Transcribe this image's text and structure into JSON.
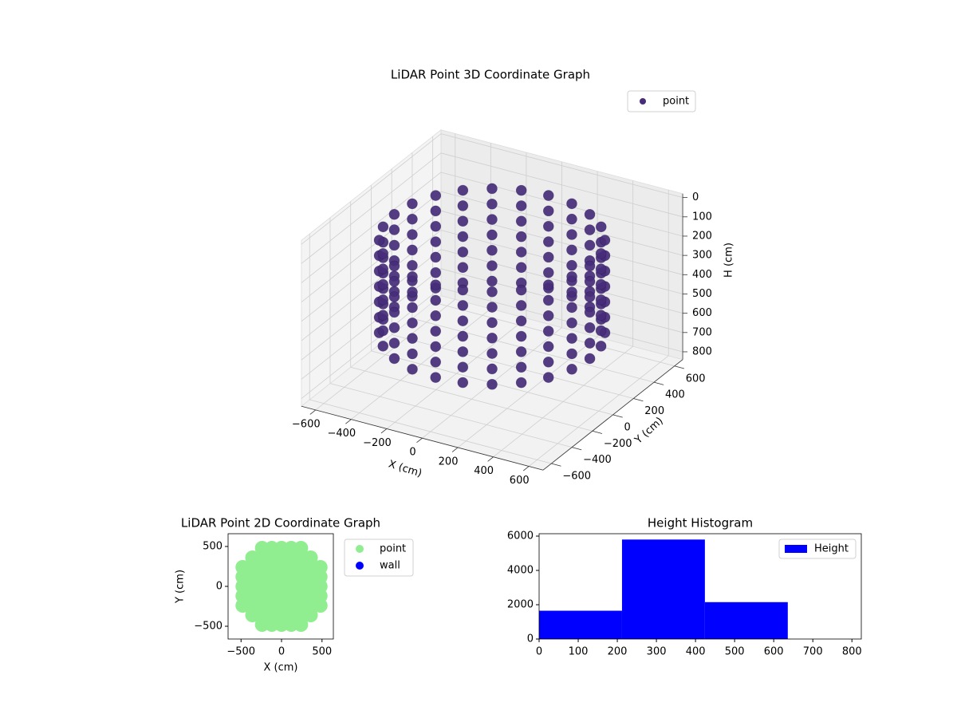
{
  "chart_data": [
    {
      "type": "scatter3d",
      "title": "LiDAR Point 3D Coordinate Graph",
      "xlabel": "X (cm)",
      "ylabel": "Y (cm)",
      "zlabel": "H (cm)",
      "xlim": [
        -680,
        680
      ],
      "ylim": [
        -680,
        680
      ],
      "zlim": [
        -20,
        840
      ],
      "zinverted": true,
      "xticks": [
        {
          "value": -600,
          "label": "−600"
        },
        {
          "value": -400,
          "label": "−400"
        },
        {
          "value": -200,
          "label": "−200"
        },
        0,
        200,
        400,
        600
      ],
      "yticks": [
        {
          "value": -600,
          "label": "−600"
        },
        {
          "value": -400,
          "label": "−400"
        },
        {
          "value": -200,
          "label": "−200"
        },
        0,
        200,
        400,
        600
      ],
      "zticks": [
        0,
        100,
        200,
        300,
        400,
        500,
        600,
        700,
        800
      ],
      "grid": true,
      "legend": "upper right",
      "series": [
        {
          "name": "point",
          "color": "#472c7a",
          "x": [
            550,
            531,
            476,
            389,
            275,
            142,
            0,
            -142,
            -275,
            -389,
            -476,
            -531,
            -550,
            -531,
            -476,
            -389,
            -275,
            -142,
            0,
            142,
            275,
            389,
            476,
            531,
            550,
            531,
            476,
            389,
            275,
            142,
            0,
            -142,
            -275,
            -389,
            -476,
            -531,
            -550,
            -531,
            -476,
            -389,
            -275,
            -142,
            0,
            142,
            275,
            389,
            476,
            531,
            550,
            531,
            476,
            389,
            275,
            142,
            0,
            -142,
            -275,
            -389,
            -476,
            -531,
            -550,
            -531,
            -476,
            -389,
            -275,
            -142,
            0,
            142,
            275,
            389,
            476,
            531,
            550,
            531,
            476,
            389,
            275,
            142,
            0,
            -142,
            -275,
            -389,
            -476,
            -531,
            -550,
            -531,
            -476,
            -389,
            -275,
            -142,
            0,
            142,
            275,
            389,
            476,
            531,
            550,
            531,
            476,
            389,
            275,
            142,
            0,
            -142,
            -275,
            -389,
            -476,
            -531,
            -550,
            -531,
            -476,
            -389,
            -275,
            -142,
            0,
            142,
            275,
            389,
            476,
            531,
            550,
            531,
            476,
            389,
            275,
            142,
            0,
            -142,
            -275,
            -389,
            -476,
            -531,
            -550,
            -531,
            -476,
            -389,
            -275,
            -142,
            0,
            142,
            275,
            389,
            476,
            531,
            550,
            531,
            476,
            389,
            275,
            142,
            0,
            -142,
            -275,
            -389,
            -476,
            -531,
            -550,
            -531,
            -476,
            -389,
            -275,
            -142,
            0,
            142,
            275,
            389,
            476,
            531
          ],
          "y": [
            0,
            142,
            275,
            389,
            476,
            531,
            550,
            531,
            476,
            389,
            275,
            142,
            0,
            -142,
            -275,
            -389,
            -476,
            -531,
            -550,
            -531,
            -476,
            -389,
            -275,
            -142,
            0,
            142,
            275,
            389,
            476,
            531,
            550,
            531,
            476,
            389,
            275,
            142,
            0,
            -142,
            -275,
            -389,
            -476,
            -531,
            -550,
            -531,
            -476,
            -389,
            -275,
            -142,
            0,
            142,
            275,
            389,
            476,
            531,
            550,
            531,
            476,
            389,
            275,
            142,
            0,
            -142,
            -275,
            -389,
            -476,
            -531,
            -550,
            -531,
            -476,
            -389,
            -275,
            -142,
            0,
            142,
            275,
            389,
            476,
            531,
            550,
            531,
            476,
            389,
            275,
            142,
            0,
            -142,
            -275,
            -389,
            -476,
            -531,
            -550,
            -531,
            -476,
            -389,
            -275,
            -142,
            0,
            142,
            275,
            389,
            476,
            531,
            550,
            531,
            476,
            389,
            275,
            142,
            0,
            -142,
            -275,
            -389,
            -476,
            -531,
            -550,
            -531,
            -476,
            -389,
            -275,
            -142,
            0,
            142,
            275,
            389,
            476,
            531,
            550,
            531,
            476,
            389,
            275,
            142,
            0,
            -142,
            -275,
            -389,
            -476,
            -531,
            -550,
            -531,
            -476,
            -389,
            -275,
            -142,
            0,
            142,
            275,
            389,
            476,
            531,
            550,
            531,
            476,
            389,
            275,
            142,
            0,
            -142,
            -275,
            -389,
            -476,
            -531,
            -550,
            -531,
            -476,
            -389,
            -275,
            -142
          ],
          "z": [
            100,
            100,
            100,
            100,
            100,
            100,
            100,
            100,
            100,
            100,
            100,
            100,
            100,
            100,
            100,
            100,
            100,
            100,
            100,
            100,
            100,
            100,
            100,
            100,
            180,
            180,
            180,
            180,
            180,
            180,
            180,
            180,
            180,
            180,
            180,
            180,
            180,
            180,
            180,
            180,
            180,
            180,
            180,
            180,
            180,
            180,
            180,
            180,
            260,
            260,
            260,
            260,
            260,
            260,
            260,
            260,
            260,
            260,
            260,
            260,
            260,
            260,
            260,
            260,
            260,
            260,
            260,
            260,
            260,
            260,
            260,
            260,
            340,
            340,
            340,
            340,
            340,
            340,
            340,
            340,
            340,
            340,
            340,
            340,
            340,
            340,
            340,
            340,
            340,
            340,
            340,
            340,
            340,
            340,
            340,
            340,
            420,
            420,
            420,
            420,
            420,
            420,
            420,
            420,
            420,
            420,
            420,
            420,
            420,
            420,
            420,
            420,
            420,
            420,
            420,
            420,
            420,
            420,
            420,
            420,
            500,
            500,
            500,
            500,
            500,
            500,
            500,
            500,
            500,
            500,
            500,
            500,
            500,
            500,
            500,
            500,
            500,
            500,
            500,
            500,
            500,
            500,
            500,
            500,
            580,
            580,
            580,
            580,
            580,
            580,
            580,
            580,
            580,
            580,
            580,
            580,
            580,
            580,
            580,
            580,
            580,
            580,
            580,
            580,
            580,
            580,
            580,
            580
          ]
        }
      ]
    },
    {
      "type": "scatter",
      "title": "LiDAR Point 2D Coordinate Graph",
      "xlabel": "X (cm)",
      "ylabel": "Y (cm)",
      "xlim": [
        -660,
        640
      ],
      "ylim": [
        -660,
        660
      ],
      "xticks": [
        {
          "value": -500,
          "label": "−500"
        },
        0,
        500
      ],
      "yticks": [
        {
          "value": -500,
          "label": "−500"
        },
        0,
        500
      ],
      "legend": "outside upper right",
      "series": [
        {
          "name": "point",
          "color": "#90ee90",
          "x": [
            -240,
            -120,
            0,
            120,
            240,
            -360,
            -240,
            -120,
            0,
            120,
            240,
            360,
            -480,
            -360,
            -240,
            -120,
            0,
            120,
            240,
            360,
            480,
            -480,
            -360,
            -240,
            -120,
            0,
            120,
            240,
            360,
            480,
            -480,
            -360,
            -240,
            -120,
            0,
            120,
            240,
            360,
            480,
            -480,
            -360,
            -240,
            -120,
            0,
            120,
            240,
            360,
            480,
            -480,
            -360,
            -240,
            -120,
            0,
            120,
            240,
            360,
            480,
            -360,
            -240,
            -120,
            0,
            120,
            240,
            360,
            -240,
            -120,
            0,
            120,
            240
          ],
          "y": [
            -480,
            -480,
            -480,
            -480,
            -480,
            -360,
            -360,
            -360,
            -360,
            -360,
            -360,
            -360,
            -240,
            -240,
            -240,
            -240,
            -240,
            -240,
            -240,
            -240,
            -240,
            -120,
            -120,
            -120,
            -120,
            -120,
            -120,
            -120,
            -120,
            -120,
            0,
            0,
            0,
            0,
            0,
            0,
            0,
            0,
            0,
            120,
            120,
            120,
            120,
            120,
            120,
            120,
            120,
            120,
            240,
            240,
            240,
            240,
            240,
            240,
            240,
            240,
            240,
            360,
            360,
            360,
            360,
            360,
            360,
            360,
            480,
            480,
            480,
            480,
            480
          ]
        },
        {
          "name": "wall",
          "color": "#0000ff",
          "x": [],
          "y": []
        }
      ]
    },
    {
      "type": "histogram",
      "title": "Height Histogram",
      "bins": [
        0,
        212,
        424,
        636
      ],
      "xlim": [
        0,
        824
      ],
      "ylim": [
        0,
        6140
      ],
      "xticks": [
        0,
        100,
        200,
        300,
        400,
        500,
        600,
        700,
        800
      ],
      "yticks": [
        0,
        2000,
        4000,
        6000
      ],
      "legend": "upper right",
      "series": [
        {
          "name": "Height",
          "color": "#0000ff",
          "values": [
            1650,
            5800,
            2150
          ]
        }
      ]
    }
  ]
}
